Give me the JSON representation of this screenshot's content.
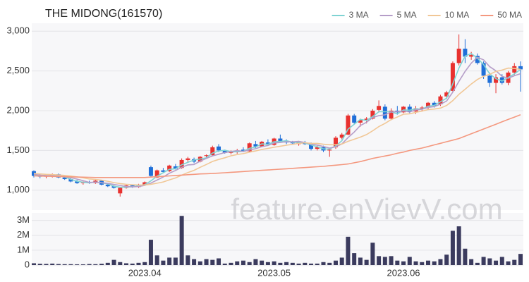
{
  "watermark": "feature.enVievV.com",
  "chart_data": [
    {
      "type": "candlestick",
      "title": "THE MIDONG(161570)",
      "open": [
        1240,
        1180,
        1170,
        1180,
        1200,
        1160,
        1140,
        1110,
        1090,
        1100,
        1090,
        1120,
        1070,
        1050,
        960,
        1030,
        1060,
        1040,
        1070,
        1290,
        1160,
        1250,
        1240,
        1300,
        1280,
        1380,
        1390,
        1360,
        1430,
        1440,
        1550,
        1500,
        1470,
        1480,
        1510,
        1490,
        1580,
        1550,
        1600,
        1570,
        1650,
        1620,
        1600,
        1580,
        1600,
        1580,
        1520,
        1540,
        1500,
        1540,
        1660,
        1700,
        1940,
        1850,
        1880,
        1900,
        2010,
        2050,
        1900,
        2000,
        1980,
        2050,
        1990,
        2030,
        2040,
        2100,
        2080,
        2180,
        2250,
        2600,
        2780,
        2680,
        2690,
        2600,
        2440,
        2350,
        2420,
        2350,
        2480,
        2560
      ],
      "high": [
        1250,
        1200,
        1190,
        1210,
        1210,
        1170,
        1150,
        1130,
        1110,
        1120,
        1130,
        1130,
        1080,
        1060,
        1040,
        1070,
        1070,
        1080,
        1110,
        1310,
        1260,
        1280,
        1320,
        1330,
        1400,
        1420,
        1410,
        1430,
        1450,
        1560,
        1580,
        1510,
        1500,
        1520,
        1540,
        1600,
        1620,
        1620,
        1640,
        1660,
        1700,
        1640,
        1620,
        1620,
        1620,
        1600,
        1560,
        1560,
        1530,
        1680,
        1720,
        1960,
        1960,
        1900,
        1920,
        2020,
        2130,
        2080,
        2030,
        2060,
        2060,
        2080,
        2060,
        2060,
        2110,
        2120,
        2200,
        2250,
        2620,
        2960,
        2900,
        2740,
        2720,
        2620,
        2480,
        2460,
        2460,
        2500,
        2600,
        2620
      ],
      "low": [
        1160,
        1150,
        1150,
        1160,
        1150,
        1130,
        1100,
        1080,
        1070,
        1080,
        1080,
        1060,
        1040,
        1020,
        920,
        1020,
        1030,
        1030,
        1060,
        1170,
        1150,
        1220,
        1230,
        1260,
        1270,
        1350,
        1340,
        1350,
        1400,
        1430,
        1480,
        1460,
        1450,
        1460,
        1480,
        1480,
        1530,
        1540,
        1560,
        1560,
        1600,
        1580,
        1570,
        1560,
        1570,
        1500,
        1500,
        1480,
        1420,
        1520,
        1640,
        1690,
        1830,
        1800,
        1840,
        1890,
        1980,
        1880,
        1880,
        1950,
        1970,
        1970,
        1960,
        1990,
        2020,
        2040,
        2060,
        2150,
        2230,
        2570,
        2600,
        2640,
        2580,
        2400,
        2300,
        2220,
        2330,
        2320,
        2450,
        2240
      ],
      "close": [
        1180,
        1170,
        1180,
        1200,
        1160,
        1140,
        1110,
        1090,
        1100,
        1090,
        1120,
        1070,
        1050,
        1030,
        1030,
        1060,
        1040,
        1070,
        1100,
        1180,
        1250,
        1230,
        1310,
        1270,
        1380,
        1400,
        1360,
        1420,
        1440,
        1540,
        1500,
        1470,
        1480,
        1500,
        1490,
        1590,
        1550,
        1610,
        1570,
        1650,
        1620,
        1600,
        1590,
        1610,
        1580,
        1520,
        1540,
        1500,
        1510,
        1660,
        1700,
        1940,
        1850,
        1880,
        1900,
        2000,
        2060,
        1900,
        2000,
        1980,
        2050,
        1990,
        2030,
        2040,
        2100,
        2060,
        2180,
        2230,
        2600,
        2780,
        2680,
        2700,
        2600,
        2440,
        2350,
        2420,
        2350,
        2480,
        2560,
        2520
      ],
      "up_color": "#e8312f",
      "down_color": "#1f6fd8",
      "series": [
        {
          "name": "3 MA",
          "color": "#7fd3d3",
          "values": [
            1190,
            1180,
            1177,
            1183,
            1180,
            1167,
            1137,
            1113,
            1100,
            1093,
            1103,
            1093,
            1080,
            1050,
            1037,
            1040,
            1043,
            1057,
            1070,
            1117,
            1177,
            1220,
            1263,
            1270,
            1320,
            1350,
            1380,
            1393,
            1407,
            1467,
            1493,
            1503,
            1483,
            1483,
            1490,
            1527,
            1543,
            1583,
            1577,
            1610,
            1613,
            1623,
            1603,
            1600,
            1593,
            1570,
            1547,
            1520,
            1517,
            1557,
            1623,
            1767,
            1830,
            1890,
            1877,
            1927,
            1987,
            1987,
            1987,
            1960,
            2010,
            2007,
            2023,
            2020,
            2057,
            2067,
            2113,
            2157,
            2337,
            2537,
            2687,
            2720,
            2660,
            2580,
            2463,
            2403,
            2373,
            2417,
            2463,
            2520
          ]
        },
        {
          "name": "5 MA",
          "color": "#b59dc8",
          "values": [
            1200,
            1190,
            1185,
            1183,
            1178,
            1170,
            1158,
            1140,
            1120,
            1098,
            1102,
            1094,
            1086,
            1072,
            1060,
            1046,
            1042,
            1046,
            1060,
            1090,
            1128,
            1166,
            1214,
            1248,
            1288,
            1318,
            1324,
            1366,
            1400,
            1432,
            1452,
            1474,
            1486,
            1498,
            1488,
            1506,
            1522,
            1548,
            1562,
            1594,
            1600,
            1610,
            1608,
            1614,
            1600,
            1580,
            1568,
            1550,
            1530,
            1546,
            1582,
            1662,
            1732,
            1814,
            1854,
            1914,
            1938,
            1948,
            1984,
            1988,
            1998,
            1984,
            2010,
            2018,
            2042,
            2052,
            2082,
            2122,
            2234,
            2370,
            2494,
            2598,
            2672,
            2640,
            2554,
            2502,
            2432,
            2408,
            2440,
            2466
          ]
        },
        {
          "name": "10 MA",
          "color": "#f1c796",
          "values": [
            1210,
            1205,
            1200,
            1196,
            1192,
            1186,
            1178,
            1168,
            1156,
            1142,
            1136,
            1126,
            1113,
            1096,
            1083,
            1075,
            1068,
            1066,
            1066,
            1075,
            1088,
            1104,
            1130,
            1154,
            1189,
            1223,
            1250,
            1288,
            1324,
            1362,
            1387,
            1408,
            1433,
            1449,
            1460,
            1479,
            1494,
            1513,
            1526,
            1540,
            1553,
            1566,
            1577,
            1588,
            1597,
            1590,
            1589,
            1578,
            1572,
            1573,
            1581,
            1615,
            1641,
            1668,
            1700,
            1748,
            1800,
            1840,
            1889,
            1921,
            1956,
            1961,
            1979,
            1995,
            2015,
            2021,
            2033,
            2066,
            2126,
            2206,
            2270,
            2336,
            2393,
            2433,
            2458,
            2494,
            2511,
            2536,
            2532,
            2520
          ]
        },
        {
          "name": "50 MA",
          "color": "#f4987f",
          "values": [
            1180,
            1178,
            1176,
            1174,
            1172,
            1170,
            1168,
            1166,
            1164,
            1162,
            1160,
            1160,
            1160,
            1160,
            1160,
            1160,
            1160,
            1160,
            1160,
            1165,
            1170,
            1175,
            1180,
            1185,
            1190,
            1195,
            1200,
            1205,
            1208,
            1210,
            1215,
            1220,
            1225,
            1230,
            1235,
            1240,
            1245,
            1250,
            1255,
            1260,
            1265,
            1270,
            1275,
            1280,
            1285,
            1290,
            1295,
            1300,
            1308,
            1315,
            1322,
            1330,
            1345,
            1360,
            1380,
            1400,
            1415,
            1430,
            1445,
            1465,
            1480,
            1500,
            1515,
            1530,
            1550,
            1570,
            1590,
            1610,
            1630,
            1650,
            1680,
            1710,
            1740,
            1770,
            1800,
            1830,
            1860,
            1890,
            1920,
            1950
          ]
        }
      ],
      "ylim": [
        750,
        3100
      ],
      "yticks": [
        {
          "value": 1000,
          "label": "1,000"
        },
        {
          "value": 1500,
          "label": "1,500"
        },
        {
          "value": 2000,
          "label": "2,000"
        },
        {
          "value": 2500,
          "label": "2,500"
        },
        {
          "value": 3000,
          "label": "3,000"
        }
      ],
      "grid": true,
      "legend": "top-right"
    },
    {
      "type": "bar",
      "categories": [
        null,
        null,
        null,
        null,
        null,
        null,
        null,
        null,
        null,
        null,
        null,
        null,
        null,
        null,
        null,
        null,
        null,
        null,
        "2023.04",
        null,
        null,
        null,
        null,
        null,
        null,
        null,
        null,
        null,
        null,
        null,
        null,
        null,
        null,
        null,
        null,
        null,
        null,
        null,
        null,
        "2023.05",
        null,
        null,
        null,
        null,
        null,
        null,
        null,
        null,
        null,
        null,
        null,
        null,
        null,
        null,
        null,
        null,
        null,
        null,
        null,
        null,
        "2023.06",
        null,
        null,
        null,
        null,
        null,
        null,
        null,
        null,
        null,
        null,
        null,
        null,
        null,
        null,
        null,
        null,
        null,
        null,
        null
      ],
      "values": [
        120000,
        90000,
        80000,
        100000,
        70000,
        60000,
        60000,
        50000,
        50000,
        70000,
        60000,
        90000,
        150000,
        350000,
        200000,
        120000,
        100000,
        150000,
        200000,
        1700000,
        650000,
        300000,
        500000,
        500000,
        3300000,
        650000,
        400000,
        250000,
        400000,
        350000,
        450000,
        100000,
        150000,
        250000,
        300000,
        200000,
        400000,
        300000,
        200000,
        250000,
        150000,
        200000,
        150000,
        100000,
        150000,
        100000,
        100000,
        200000,
        150000,
        300000,
        500000,
        1900000,
        800000,
        500000,
        350000,
        1500000,
        600000,
        550000,
        600000,
        300000,
        250000,
        550000,
        250000,
        200000,
        300000,
        250000,
        400000,
        700000,
        2300000,
        2600000,
        1100000,
        400000,
        150000,
        550000,
        450000,
        300000,
        550000,
        250000,
        350000,
        750000
      ],
      "color": "#3b3b5e",
      "ylim": [
        0,
        3500000
      ],
      "yticks": [
        0,
        {
          "value": 1000000,
          "label": "1M"
        },
        {
          "value": 2000000,
          "label": "2M"
        },
        {
          "value": 3000000,
          "label": "3M"
        }
      ],
      "grid": true
    }
  ]
}
